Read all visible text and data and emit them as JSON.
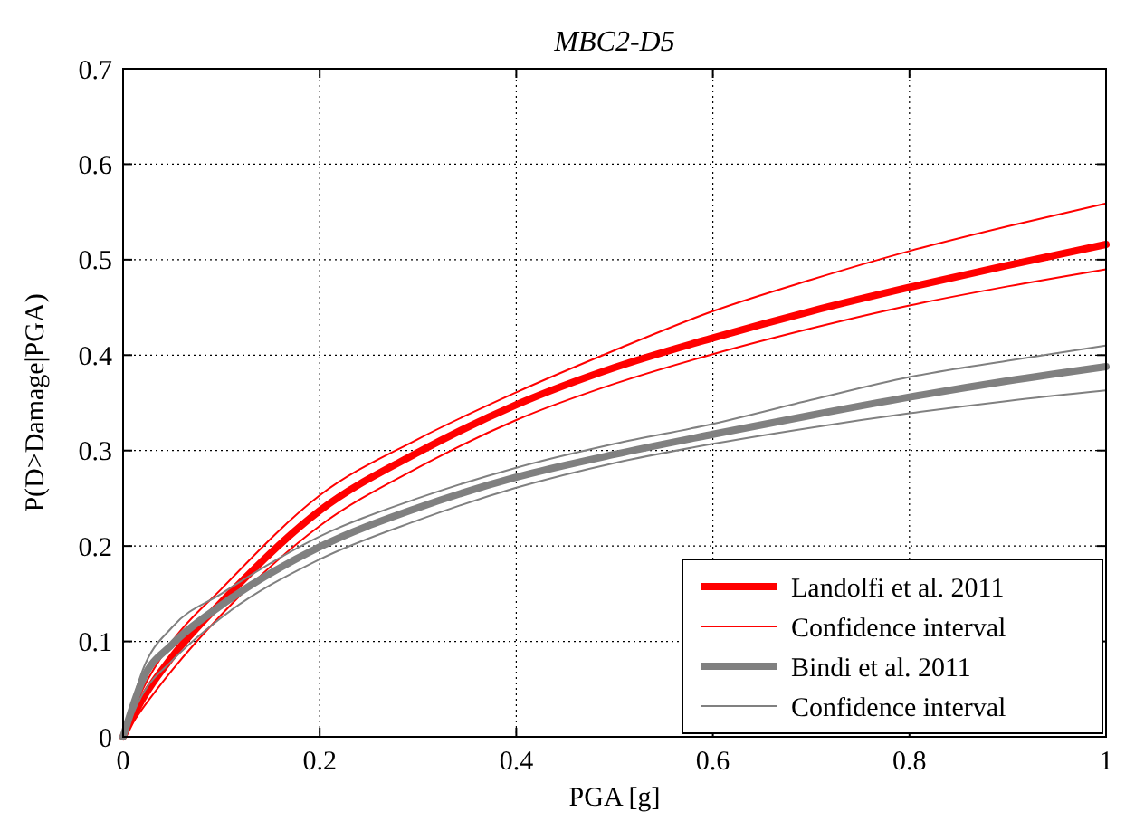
{
  "chart_data": {
    "type": "line",
    "title": "MBC2-D5",
    "xlabel": "PGA [g]",
    "ylabel": "P(D>Damage|PGA)",
    "x": [
      0,
      0.02,
      0.05,
      0.1,
      0.2,
      0.3,
      0.4,
      0.5,
      0.6,
      0.7,
      0.8,
      0.9,
      1
    ],
    "series": [
      {
        "name": "Landolfi et al. 2011",
        "color": "#ff0000",
        "values": [
          0,
          0.04,
          0.084,
          0.141,
          0.237,
          0.298,
          0.348,
          0.387,
          0.418,
          0.446,
          0.471,
          0.494,
          0.516
        ]
      },
      {
        "name": "Confidence interval",
        "color": "#ff0000",
        "values": [
          0,
          0.05,
          0.1,
          0.155,
          0.253,
          0.312,
          0.361,
          0.405,
          0.446,
          0.479,
          0.509,
          0.535,
          0.559
        ]
      },
      {
        "color": "#ff0000",
        "values": [
          0,
          0.03,
          0.07,
          0.128,
          0.221,
          0.282,
          0.332,
          0.37,
          0.401,
          0.428,
          0.452,
          0.472,
          0.49
        ]
      },
      {
        "name": "Bindi et al. 2011",
        "color": "#808080",
        "values": [
          0,
          0.06,
          0.097,
          0.138,
          0.199,
          0.24,
          0.272,
          0.296,
          0.317,
          0.337,
          0.356,
          0.373,
          0.388
        ]
      },
      {
        "name": "Confidence interval",
        "color": "#808080",
        "values": [
          0,
          0.07,
          0.115,
          0.15,
          0.21,
          0.25,
          0.282,
          0.307,
          0.328,
          0.353,
          0.377,
          0.394,
          0.41
        ]
      },
      {
        "color": "#808080",
        "values": [
          0,
          0.045,
          0.08,
          0.125,
          0.186,
          0.227,
          0.261,
          0.287,
          0.307,
          0.324,
          0.339,
          0.352,
          0.363
        ]
      }
    ],
    "xlim": [
      0,
      1
    ],
    "xticks": [
      0,
      0.2,
      0.4,
      0.6,
      0.8,
      1
    ],
    "ylim": [
      0,
      0.7
    ],
    "yticks": [
      0,
      0.1,
      0.2,
      0.3,
      0.4,
      0.5,
      0.6,
      0.7
    ],
    "grid": true,
    "legend": "bottom right",
    "line_style": "solid"
  }
}
